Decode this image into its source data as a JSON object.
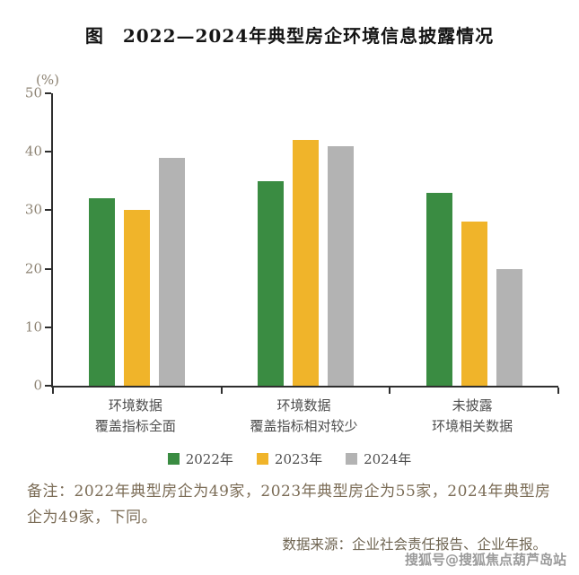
{
  "title": "图　2022—2024年典型房企环境信息披露情况",
  "chart_data": {
    "type": "bar",
    "title": "2022—2024年典型房企环境信息披露情况",
    "unit_label": "(%)",
    "categories": [
      [
        "环境数据",
        "覆盖指标全面"
      ],
      [
        "环境数据",
        "覆盖指标相对较少"
      ],
      [
        "未披露",
        "环境相关数据"
      ]
    ],
    "series": [
      {
        "name": "2022年",
        "color": "#3a8c42",
        "values": [
          32,
          35,
          33
        ]
      },
      {
        "name": "2023年",
        "color": "#f0b42a",
        "values": [
          30,
          42,
          28
        ]
      },
      {
        "name": "2024年",
        "color": "#b3b3b3",
        "values": [
          39,
          41,
          20
        ]
      }
    ],
    "ylim": [
      0,
      50
    ],
    "yticks": [
      0,
      10,
      20,
      30,
      40,
      50
    ],
    "grid": false,
    "legend_position": "bottom"
  },
  "notes": "备注：2022年典型房企为49家，2023年典型房企为55家，2024年典型房企为49家，下同。",
  "source": "数据来源：企业社会责任报告、企业年报。",
  "watermark": "搜狐号@搜狐焦点葫芦岛站"
}
